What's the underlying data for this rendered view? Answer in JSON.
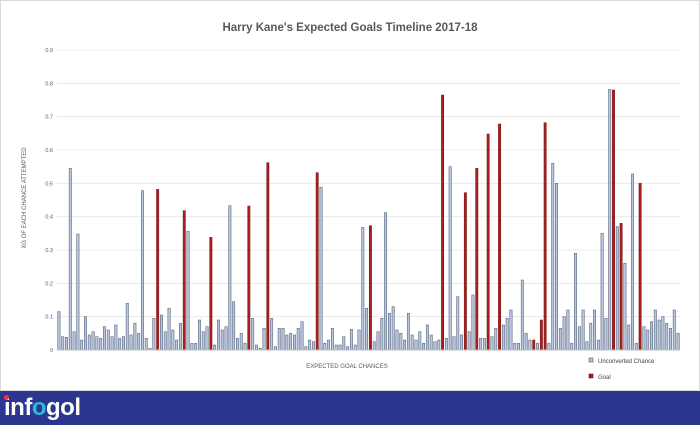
{
  "chart_data": {
    "type": "bar",
    "title": "Harry Kane's Expected Goals Timeline 2017-18",
    "xlabel": "EXPECTED GOAL CHANCES",
    "ylabel": "XG OF EACH CHANCE ATTEMPTED",
    "ylim": [
      0,
      0.9
    ],
    "yticks": [
      "0",
      "0.1",
      "0.2",
      "0.3",
      "0.4",
      "0.5",
      "0.6",
      "0.7",
      "0.8",
      "0.9"
    ],
    "grid": true,
    "legend_position": "bottom-right",
    "series": [
      {
        "name": "Unconverted Chance",
        "color": "#b8c5e0",
        "edge": "#44546a"
      },
      {
        "name": "Goal",
        "color": "#a5201f",
        "edge": "#7a1414"
      }
    ],
    "values": [
      0.115,
      0.04,
      0.038,
      0.545,
      0.055,
      0.348,
      0.03,
      0.1,
      0.045,
      0.055,
      0.04,
      0.035,
      0.07,
      0.06,
      0.04,
      0.075,
      0.035,
      0.04,
      0.14,
      0.045,
      0.08,
      0.05,
      0.478,
      0.035,
      0.005,
      0.095,
      0.482,
      0.105,
      0.055,
      0.125,
      0.06,
      0.03,
      0.08,
      0.418,
      0.356,
      0.02,
      0.02,
      0.09,
      0.055,
      0.07,
      0.338,
      0.015,
      0.09,
      0.06,
      0.07,
      0.433,
      0.145,
      0.035,
      0.05,
      0.02,
      0.432,
      0.095,
      0.015,
      0.005,
      0.065,
      0.562,
      0.095,
      0.01,
      0.065,
      0.065,
      0.045,
      0.05,
      0.045,
      0.065,
      0.085,
      0.01,
      0.03,
      0.025,
      0.532,
      0.488,
      0.02,
      0.03,
      0.065,
      0.015,
      0.015,
      0.04,
      0.01,
      0.062,
      0.015,
      0.06,
      0.368,
      0.125,
      0.373,
      0.025,
      0.055,
      0.095,
      0.412,
      0.11,
      0.13,
      0.06,
      0.05,
      0.03,
      0.11,
      0.045,
      0.03,
      0.055,
      0.02,
      0.075,
      0.045,
      0.025,
      0.03,
      0.765,
      0.035,
      0.55,
      0.04,
      0.16,
      0.045,
      0.472,
      0.055,
      0.165,
      0.545,
      0.035,
      0.035,
      0.648,
      0.04,
      0.065,
      0.678,
      0.075,
      0.095,
      0.12,
      0.02,
      0.02,
      0.21,
      0.05,
      0.03,
      0.03,
      0.02,
      0.09,
      0.682,
      0.02,
      0.56,
      0.5,
      0.065,
      0.1,
      0.12,
      0.02,
      0.29,
      0.07,
      0.12,
      0.025,
      0.08,
      0.12,
      0.03,
      0.35,
      0.095,
      0.782,
      0.78,
      0.37,
      0.38,
      0.26,
      0.075,
      0.528,
      0.02,
      0.5,
      0.07,
      0.06,
      0.085,
      0.12,
      0.09,
      0.1,
      0.08,
      0.065,
      0.12,
      0.05
    ],
    "goal_indices": [
      26,
      33,
      40,
      50,
      55,
      68,
      82,
      101,
      107,
      110,
      113,
      116,
      125,
      127,
      128,
      146,
      148,
      153
    ],
    "legend_glyph_unconverted": "■",
    "legend_glyph_goal": "■"
  },
  "brand": {
    "logo_prefix": "inf",
    "logo_accent": "o",
    "logo_suffix": "gol"
  }
}
